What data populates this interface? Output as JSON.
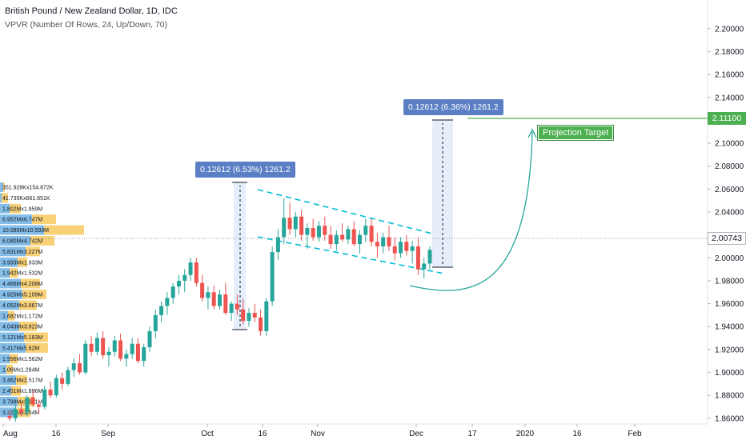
{
  "header": {
    "symbol_title": "British Pound / New Zealand Dollar, 1D, IDC",
    "indicator": "VPVR (Number Of Rows, 24, Up/Down, 70)"
  },
  "measure_left": {
    "label": "0.12612 (6.53%) 1261.2"
  },
  "measure_right": {
    "label": "0.12612 (6.36%) 1261.2"
  },
  "projection": {
    "label": "Projection Target",
    "price": "2.11100"
  },
  "current_price": {
    "label": "2.00743"
  },
  "price_axis": {
    "ticks": [
      "2.20000",
      "2.18000",
      "2.16000",
      "2.14000",
      "2.12000",
      "2.10000",
      "2.08000",
      "2.06000",
      "2.04000",
      "2.02000",
      "2.00000",
      "1.98000",
      "1.96000",
      "1.94000",
      "1.92000",
      "1.90000",
      "1.88000",
      "1.86000"
    ]
  },
  "time_axis": {
    "ticks": [
      "Aug",
      "16",
      "Sep",
      "Oct",
      "16",
      "Nov",
      "Dec",
      "17",
      "2020",
      "16",
      "Feb"
    ]
  },
  "vpvr_rows": [
    "351.928Kx154.872K",
    "41.735Kx661.651K",
    "1.802Mx1.959M",
    "6.952Mx6.747M",
    "10.085Mx10.593M",
    "6.080Mx4.742M",
    "5.831Mx3.227M",
    "3.933Mx1.933M",
    "1.942Mx1.532M",
    "4.466Mx4.208M",
    "4.920Mx5.109M",
    "4.052Mx3.667M",
    "1.682Mx1.172M",
    "4.043Mx3.923M",
    "5.121Mx5.183M",
    "5.417Mx5.82M",
    "1.956Mx1.562M",
    "1.06Mx1.284M",
    "3.462Mx2.517M",
    "2.451Mx1.896M",
    "3.799Mx3.801M",
    "3.326Mx3.04M"
  ],
  "colors": {
    "up": "#26a69a",
    "down": "#ef5350",
    "measure": "#5b7fc4",
    "channel": "#00bcd4",
    "projection": "#4caf50",
    "vpvr_up": "#5aa7e0",
    "vpvr_down": "#f7c24a"
  },
  "chart_data": {
    "type": "candlestick",
    "y_range": [
      1.855,
      2.225
    ],
    "candles": [
      [
        1.862,
        1.866,
        1.858,
        1.86
      ],
      [
        1.86,
        1.872,
        1.857,
        1.868
      ],
      [
        1.868,
        1.874,
        1.862,
        1.865
      ],
      [
        1.865,
        1.88,
        1.862,
        1.878
      ],
      [
        1.878,
        1.884,
        1.87,
        1.872
      ],
      [
        1.872,
        1.876,
        1.864,
        1.87
      ],
      [
        1.87,
        1.888,
        1.868,
        1.885
      ],
      [
        1.885,
        1.892,
        1.878,
        1.88
      ],
      [
        1.88,
        1.898,
        1.878,
        1.895
      ],
      [
        1.895,
        1.9,
        1.885,
        1.89
      ],
      [
        1.89,
        1.905,
        1.888,
        1.902
      ],
      [
        1.902,
        1.912,
        1.896,
        1.908
      ],
      [
        1.908,
        1.916,
        1.898,
        1.9
      ],
      [
        1.9,
        1.928,
        1.898,
        1.925
      ],
      [
        1.925,
        1.932,
        1.914,
        1.918
      ],
      [
        1.918,
        1.935,
        1.915,
        1.93
      ],
      [
        1.93,
        1.936,
        1.912,
        1.915
      ],
      [
        1.915,
        1.922,
        1.905,
        1.918
      ],
      [
        1.918,
        1.932,
        1.914,
        1.928
      ],
      [
        1.928,
        1.934,
        1.91,
        1.912
      ],
      [
        1.912,
        1.92,
        1.905,
        1.916
      ],
      [
        1.916,
        1.93,
        1.912,
        1.925
      ],
      [
        1.925,
        1.93,
        1.908,
        1.91
      ],
      [
        1.91,
        1.925,
        1.905,
        1.922
      ],
      [
        1.922,
        1.94,
        1.918,
        1.936
      ],
      [
        1.936,
        1.955,
        1.93,
        1.95
      ],
      [
        1.95,
        1.962,
        1.944,
        1.958
      ],
      [
        1.958,
        1.97,
        1.95,
        1.965
      ],
      [
        1.965,
        1.978,
        1.96,
        1.975
      ],
      [
        1.975,
        1.985,
        1.968,
        1.98
      ],
      [
        1.98,
        1.99,
        1.97,
        1.985
      ],
      [
        1.985,
        2.0,
        1.98,
        1.996
      ],
      [
        1.996,
        2.0,
        1.975,
        1.978
      ],
      [
        1.978,
        1.985,
        1.962,
        1.965
      ],
      [
        1.965,
        1.975,
        1.955,
        1.97
      ],
      [
        1.97,
        1.976,
        1.955,
        1.958
      ],
      [
        1.958,
        1.972,
        1.955,
        1.968
      ],
      [
        1.968,
        1.978,
        1.95,
        1.952
      ],
      [
        1.952,
        1.962,
        1.945,
        1.96
      ],
      [
        1.96,
        1.968,
        1.95,
        1.955
      ],
      [
        1.955,
        1.964,
        1.942,
        1.945
      ],
      [
        1.945,
        1.956,
        1.94,
        1.952
      ],
      [
        1.952,
        1.96,
        1.944,
        1.948
      ],
      [
        1.948,
        1.955,
        1.932,
        1.936
      ],
      [
        1.936,
        1.965,
        1.932,
        1.962
      ],
      [
        1.962,
        2.01,
        1.958,
        2.005
      ],
      [
        2.005,
        2.025,
        1.998,
        2.018
      ],
      [
        2.018,
        2.052,
        2.012,
        2.035
      ],
      [
        2.035,
        2.048,
        2.02,
        2.025
      ],
      [
        2.025,
        2.04,
        2.018,
        2.036
      ],
      [
        2.036,
        2.042,
        2.015,
        2.02
      ],
      [
        2.02,
        2.03,
        2.008,
        2.026
      ],
      [
        2.026,
        2.034,
        2.015,
        2.018
      ],
      [
        2.018,
        2.032,
        2.014,
        2.028
      ],
      [
        2.028,
        2.036,
        2.015,
        2.02
      ],
      [
        2.02,
        2.028,
        2.008,
        2.012
      ],
      [
        2.012,
        2.024,
        2.006,
        2.02
      ],
      [
        2.02,
        2.03,
        2.014,
        2.016
      ],
      [
        2.016,
        2.028,
        2.012,
        2.025
      ],
      [
        2.025,
        2.032,
        2.01,
        2.012
      ],
      [
        2.012,
        2.024,
        2.004,
        2.02
      ],
      [
        2.02,
        2.034,
        2.014,
        2.028
      ],
      [
        2.028,
        2.034,
        2.01,
        2.014
      ],
      [
        2.014,
        2.022,
        2.0,
        2.01
      ],
      [
        2.01,
        2.022,
        2.004,
        2.018
      ],
      [
        2.018,
        2.028,
        2.006,
        2.01
      ],
      [
        2.01,
        2.018,
        1.998,
        2.004
      ],
      [
        2.004,
        2.018,
        2.0,
        2.014
      ],
      [
        2.014,
        2.02,
        2.002,
        2.006
      ],
      [
        2.006,
        2.015,
        1.995,
        2.01
      ],
      [
        2.01,
        2.018,
        1.985,
        1.99
      ],
      [
        1.99,
        2.0,
        1.982,
        1.995
      ],
      [
        1.995,
        2.01,
        1.99,
        2.007
      ]
    ]
  }
}
